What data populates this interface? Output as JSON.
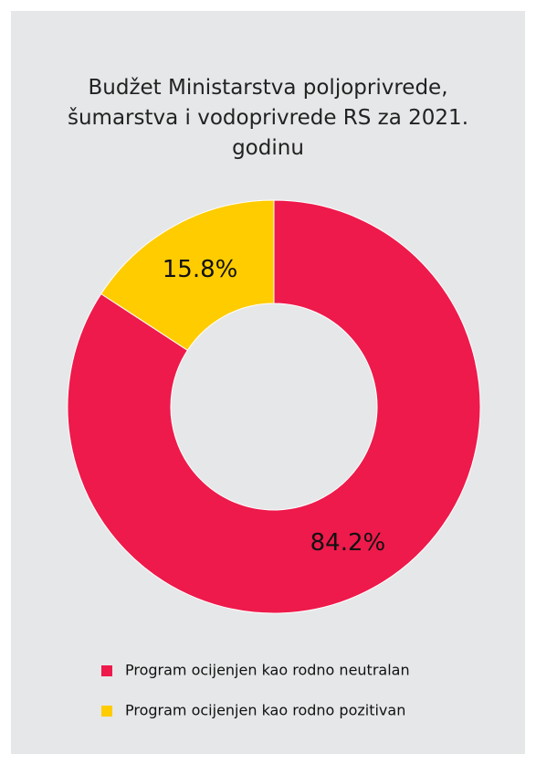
{
  "chart_data": {
    "type": "donut",
    "title": "Budžet Ministarstva poljoprivrede, šumarstva i vodoprivrede RS za 2021. godinu",
    "categories": [
      "Program ocijenjen kao rodno neutralan",
      "Program ocijenjen kao rodno pozitivan"
    ],
    "values": [
      84.2,
      15.8
    ],
    "value_labels": [
      "84.2%",
      "15.8%"
    ],
    "colors": [
      "#ee1a4b",
      "#ffcc00"
    ],
    "legend": "bottom"
  }
}
